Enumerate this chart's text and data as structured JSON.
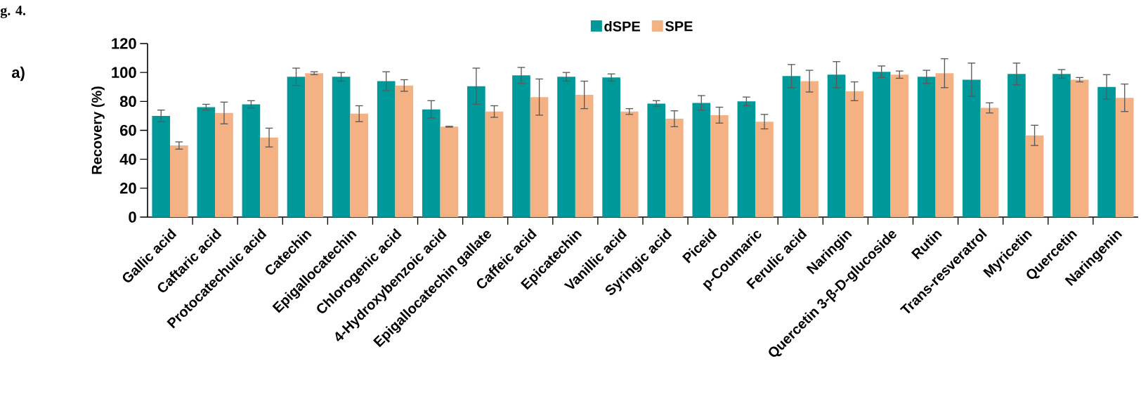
{
  "chart_data": {
    "type": "bar",
    "ylabel": "Recovery (%)",
    "categories": [
      "Gallic acid",
      "Caftaric acid",
      "Protocatechuic acid",
      "Catechin",
      "Epigallocatechin",
      "Chlorogenic acid",
      "4-Hydroxybenzoic acid",
      "Epigallocatechin gallate",
      "Caffeic acid",
      "Epicatechin",
      "Vanillic acid",
      "Syringic acid",
      "Piceid",
      "p-Coumaric",
      "Ferulic acid",
      "Naringin",
      "Quercetin 3-β-D-glucoside",
      "Rutin",
      "Trans-resveratrol",
      "Myricetin",
      "Quercetin",
      "Naringenin"
    ],
    "series": [
      {
        "name": "dSPE",
        "color": "#009999",
        "values": [
          70,
          76,
          78,
          97,
          97,
          94,
          74.5,
          90.5,
          98,
          97,
          96.5,
          78.5,
          79,
          80,
          97.5,
          98.5,
          100.5,
          97,
          95,
          99,
          99,
          90
        ],
        "errors": [
          4,
          2,
          2.5,
          6,
          3,
          6.5,
          6,
          12.5,
          5.5,
          3,
          2.5,
          2,
          5,
          3,
          8,
          9,
          4,
          4.5,
          11.5,
          7.5,
          3,
          8.5
        ]
      },
      {
        "name": "SPE",
        "color": "#f4b183",
        "values": [
          49.5,
          72,
          55,
          99.5,
          71.5,
          91,
          62.5,
          73,
          83,
          84.5,
          73,
          68,
          70.5,
          66,
          94,
          87,
          98.5,
          99.5,
          75.5,
          56.5,
          95,
          82.5
        ],
        "errors": [
          2.5,
          7.5,
          6.5,
          1,
          5.5,
          4,
          0.3,
          4,
          12.5,
          9.5,
          2,
          5.5,
          5.5,
          5,
          7.5,
          6.5,
          2.5,
          10,
          3.5,
          7,
          1.5,
          9.5
        ]
      }
    ],
    "ylim": [
      0,
      120
    ],
    "yticks": [
      0,
      20,
      40,
      60,
      80,
      100,
      120
    ],
    "legend": "top",
    "annotations": [
      "g. 4.",
      "a)"
    ]
  }
}
